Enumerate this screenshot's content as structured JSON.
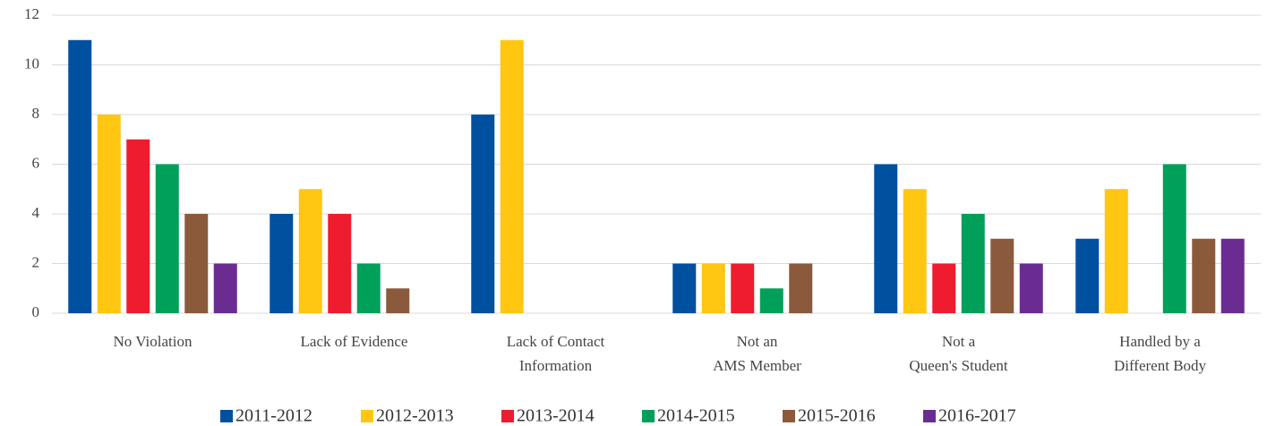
{
  "chart_data": {
    "type": "bar",
    "categories": [
      [
        "No Violation"
      ],
      [
        "Lack of Evidence"
      ],
      [
        "Lack of Contact",
        "Information"
      ],
      [
        "Not an",
        "AMS Member"
      ],
      [
        "Not a",
        "Queen's Student"
      ],
      [
        "Handled by a",
        "Different Body"
      ]
    ],
    "series": [
      {
        "name": "2011-2012",
        "color": "#0050a0",
        "values": [
          11,
          4,
          8,
          2,
          6,
          3
        ]
      },
      {
        "name": "2012-2013",
        "color": "#ffc612",
        "values": [
          8,
          5,
          11,
          2,
          5,
          5
        ]
      },
      {
        "name": "2013-2014",
        "color": "#ee1c2e",
        "values": [
          7,
          4,
          0,
          2,
          2,
          0
        ]
      },
      {
        "name": "2014-2015",
        "color": "#00a05a",
        "values": [
          6,
          2,
          0,
          1,
          4,
          6
        ]
      },
      {
        "name": "2015-2016",
        "color": "#8b5a3c",
        "values": [
          4,
          1,
          0,
          2,
          3,
          3
        ]
      },
      {
        "name": "2016-2017",
        "color": "#6a2c91",
        "values": [
          2,
          0,
          0,
          0,
          2,
          3
        ]
      }
    ],
    "ylim": [
      0,
      12
    ],
    "yticks": [
      0,
      2,
      4,
      6,
      8,
      10,
      12
    ],
    "grid": true,
    "legend": "bottom"
  }
}
